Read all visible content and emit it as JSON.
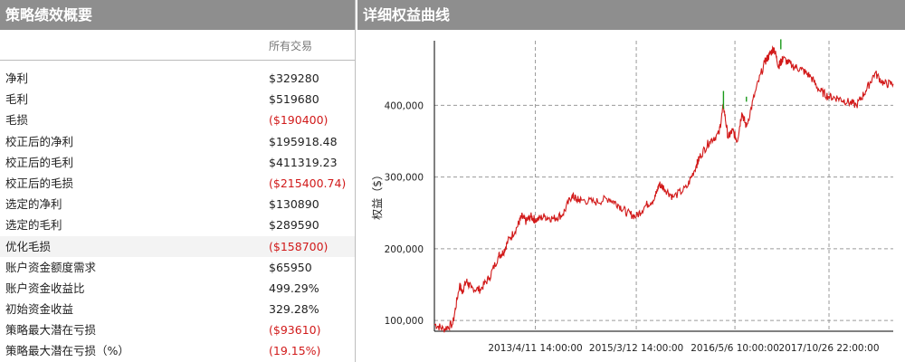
{
  "summary": {
    "title": "策略绩效概要",
    "column_header": "所有交易",
    "rows": [
      {
        "label": "净利",
        "value": "$329280",
        "negative": false
      },
      {
        "label": "毛利",
        "value": "$519680",
        "negative": false
      },
      {
        "label": "毛损",
        "value": "($190400)",
        "negative": true
      },
      {
        "label": "校正后的净利",
        "value": "$195918.48",
        "negative": false
      },
      {
        "label": "校正后的毛利",
        "value": "$411319.23",
        "negative": false
      },
      {
        "label": "校正后的毛损",
        "value": "($215400.74)",
        "negative": true
      },
      {
        "label": "选定的净利",
        "value": "$130890",
        "negative": false
      },
      {
        "label": "选定的毛利",
        "value": "$289590",
        "negative": false
      },
      {
        "label": "优化毛损",
        "value": "($158700)",
        "negative": true
      },
      {
        "label": "账户资金额度需求",
        "value": "$65950",
        "negative": false
      },
      {
        "label": "账户资金收益比",
        "value": "499.29%",
        "negative": false
      },
      {
        "label": "初始资金收益",
        "value": "329.28%",
        "negative": false
      },
      {
        "label": "策略最大潜在亏损",
        "value": "($93610)",
        "negative": true
      },
      {
        "label": "策略最大潜在亏损（%）",
        "value": "(19.15%)",
        "negative": true
      }
    ]
  },
  "equity": {
    "title": "详细权益曲线",
    "colors": {
      "line": "#d21a1a",
      "up": "#1a9a1a",
      "grid": "#9a9a9a"
    }
  },
  "chart_data": {
    "type": "line",
    "title": "",
    "ylabel": "权益（$）",
    "xlabel": "",
    "ylim": [
      85000,
      490000
    ],
    "yticks": [
      100000,
      200000,
      300000,
      400000
    ],
    "ytick_labels": [
      "100,000",
      "200,000",
      "300,000",
      "400,000"
    ],
    "xticks": [
      0.22,
      0.44,
      0.655,
      0.86
    ],
    "xtick_labels": [
      "2013/4/11 14:00:00",
      "2015/3/12 14:00:00",
      "2016/5/6 10:00:00",
      "2017/10/26 22:00:00"
    ],
    "grid": true,
    "series": [
      {
        "x": [
          0,
          0.02,
          0.04,
          0.055,
          0.06,
          0.07,
          0.08,
          0.1,
          0.12,
          0.14,
          0.15,
          0.16,
          0.18,
          0.19,
          0.2,
          0.21,
          0.22,
          0.24,
          0.26,
          0.28,
          0.3,
          0.31,
          0.32,
          0.35,
          0.38,
          0.4,
          0.42,
          0.44,
          0.46,
          0.48,
          0.49,
          0.5,
          0.52,
          0.55,
          0.57,
          0.58,
          0.6,
          0.62,
          0.63,
          0.64,
          0.65,
          0.66,
          0.67,
          0.68,
          0.7,
          0.72,
          0.73,
          0.74,
          0.75,
          0.755,
          0.76,
          0.78,
          0.8,
          0.82,
          0.84,
          0.86,
          0.88,
          0.9,
          0.92,
          0.94,
          0.96,
          0.98,
          1.0
        ],
        "y": [
          95000,
          88000,
          95000,
          150000,
          140000,
          155000,
          145000,
          143000,
          160000,
          190000,
          195000,
          210000,
          230000,
          245000,
          238000,
          245000,
          240000,
          245000,
          242000,
          248000,
          275000,
          268000,
          268000,
          265000,
          270000,
          262000,
          250000,
          245000,
          260000,
          270000,
          290000,
          285000,
          272000,
          285000,
          315000,
          330000,
          350000,
          360000,
          400000,
          355000,
          365000,
          350000,
          390000,
          370000,
          420000,
          460000,
          470000,
          480000,
          455000,
          460000,
          465000,
          455000,
          450000,
          440000,
          420000,
          412000,
          410000,
          405000,
          400000,
          420000,
          445000,
          430000,
          430000
        ]
      }
    ]
  }
}
